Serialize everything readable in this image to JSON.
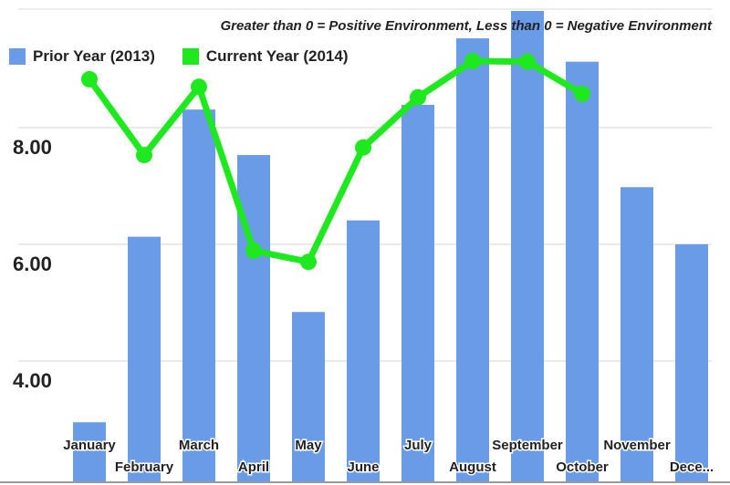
{
  "chart_data": {
    "type": "bar",
    "title": "",
    "subtitle": "Greater than 0 = Positive Environment, Less than 0 = Negative Environment",
    "xlabel": "",
    "ylabel": "",
    "categories": [
      "January",
      "February",
      "March",
      "April",
      "May",
      "June",
      "July",
      "August",
      "September",
      "October",
      "November",
      "Dece..."
    ],
    "series": [
      {
        "name": "Prior Year (2013)",
        "type": "bar",
        "color": "#6a9be6",
        "values": [
          2.95,
          6.13,
          8.31,
          7.53,
          4.84,
          6.41,
          8.39,
          9.53,
          10.0,
          9.13,
          6.98,
          6.0
        ]
      },
      {
        "name": "Current Year (2014)",
        "type": "line",
        "color": "#1ee81e",
        "values": [
          8.83,
          7.53,
          8.7,
          5.89,
          5.7,
          7.66,
          8.52,
          9.14,
          9.13,
          8.58,
          null,
          null
        ]
      }
    ],
    "yticks": [
      "4.00",
      "6.00",
      "8.00"
    ],
    "ytick_values": [
      4,
      6,
      8
    ],
    "ylim": [
      2,
      10.2
    ],
    "grid": true,
    "legend_position": "top-left"
  },
  "legend": {
    "prior_label": "Prior Year (2013)",
    "current_label": "Current Year (2014)",
    "prior_color": "#6a9be6",
    "current_color": "#1ee81e"
  },
  "subtitle": "Greater than 0 = Positive Environment, Less than 0 = Negative Environment"
}
